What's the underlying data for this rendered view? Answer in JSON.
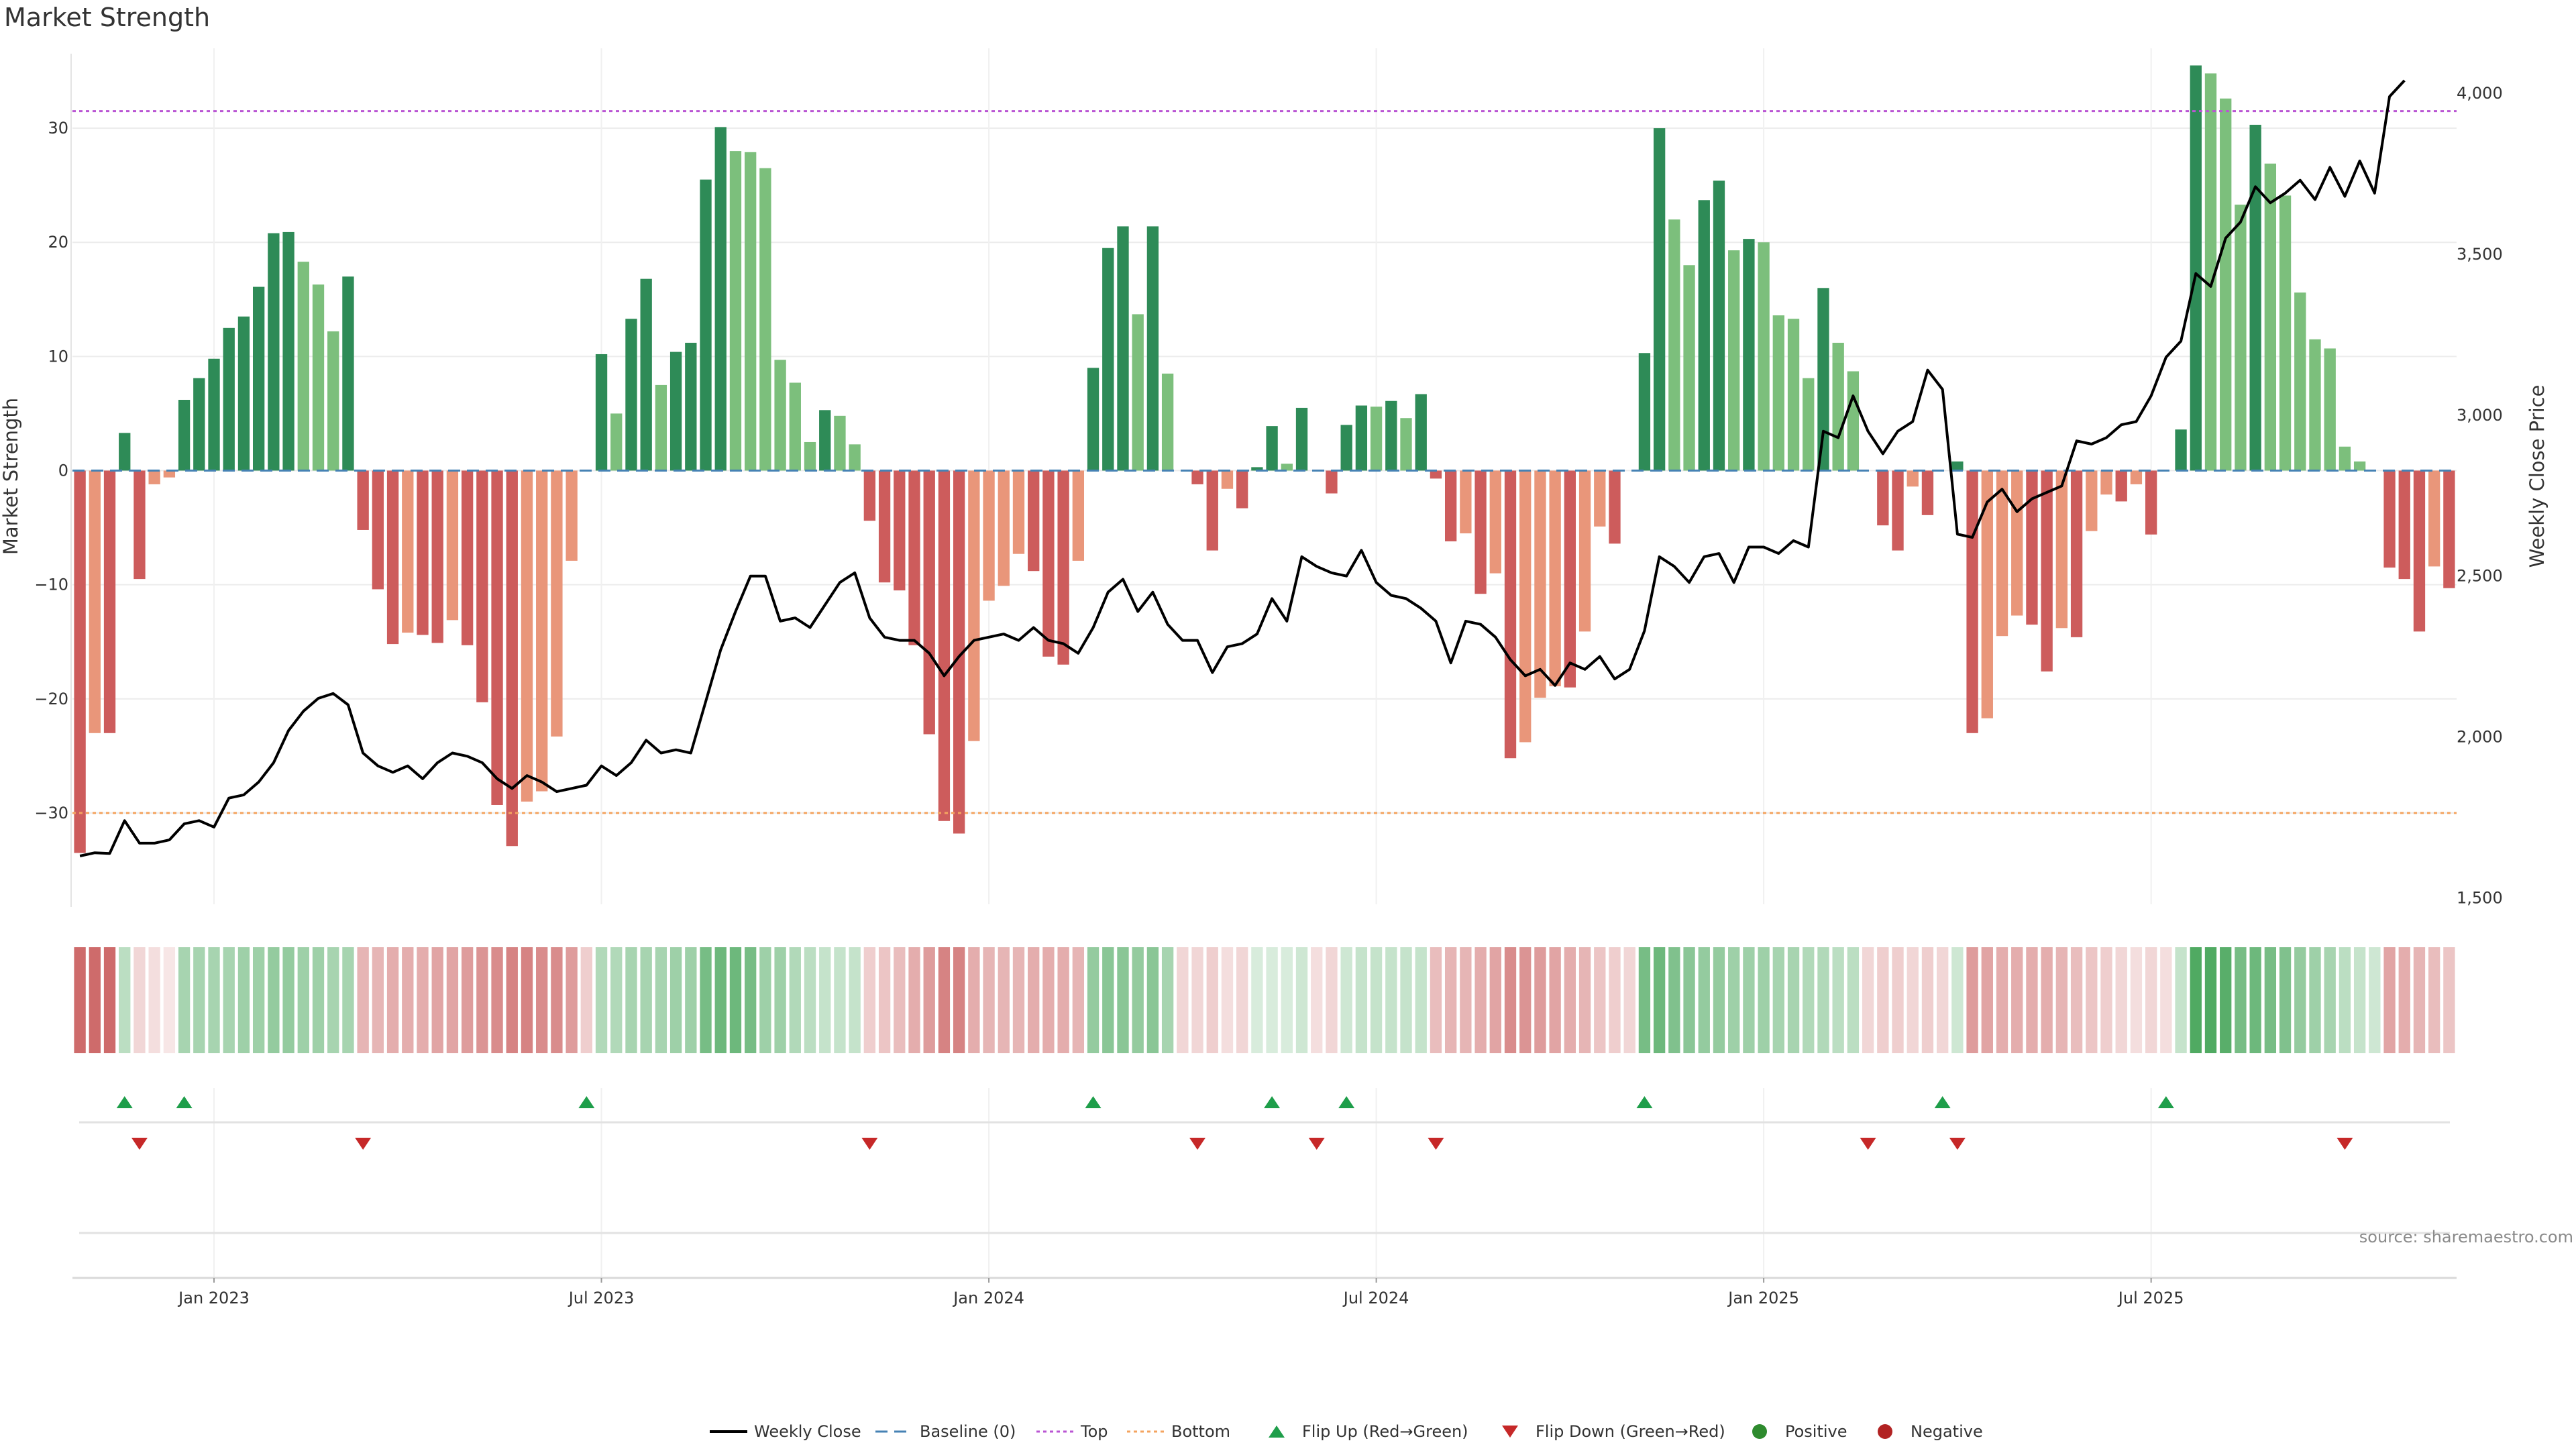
{
  "title": "Market Strength",
  "source": "source: sharemaestro.com",
  "chart_data": {
    "type": "bar",
    "title": "Market Strength",
    "ylabel": "Market Strength",
    "y2label": "Weekly Close Price",
    "ylim": [
      -38,
      37
    ],
    "y2lim": [
      1480,
      4140
    ],
    "yticks": [
      -30,
      -20,
      -10,
      0,
      10,
      20,
      30
    ],
    "y2ticks": [
      1500,
      2000,
      2500,
      3000,
      3500,
      4000
    ],
    "y2tick_labels": [
      "1,500",
      "2,000",
      "2,500",
      "3,000",
      "3,500",
      "4,000"
    ],
    "x_axis_ticks": [
      {
        "label": "Jan 2023",
        "week": 9
      },
      {
        "label": "Jul 2023",
        "week": 35
      },
      {
        "label": "Jan 2024",
        "week": 61
      },
      {
        "label": "Jul 2024",
        "week": 87
      },
      {
        "label": "Jan 2025",
        "week": 113
      },
      {
        "label": "Jul 2025",
        "week": 139
      }
    ],
    "top_level": 31.5,
    "bottom_level": -30,
    "baseline": 0,
    "strength": [
      -33.5,
      -23,
      -23,
      3.3,
      -9.5,
      -1.2,
      -0.6,
      6.2,
      8.1,
      9.8,
      12.5,
      13.5,
      16.1,
      20.8,
      20.9,
      18.3,
      16.3,
      12.2,
      17,
      -5.2,
      -10.4,
      -15.2,
      -14.2,
      -14.4,
      -15.1,
      -13.1,
      -15.3,
      -20.3,
      -29.3,
      -32.9,
      -29,
      -28.1,
      -23.3,
      -7.9,
      0,
      10.2,
      5,
      13.3,
      16.8,
      7.5,
      10.4,
      11.2,
      25.5,
      30.1,
      28,
      27.9,
      26.5,
      9.7,
      7.7,
      2.5,
      5.3,
      4.8,
      2.3,
      -4.4,
      -9.8,
      -10.5,
      -15.3,
      -23.1,
      -30.7,
      -31.8,
      -23.7,
      -11.4,
      -10.1,
      -7.3,
      -8.8,
      -16.3,
      -17,
      -7.9,
      9,
      19.5,
      21.4,
      13.7,
      21.4,
      8.5,
      0,
      -1.2,
      -7,
      -1.6,
      -3.3,
      0.3,
      3.9,
      0.6,
      5.5,
      0,
      -2,
      4,
      5.7,
      5.6,
      6.1,
      4.6,
      6.7,
      -0.7,
      -6.2,
      -5.5,
      -10.8,
      -9,
      -25.2,
      -23.8,
      -19.9,
      -18.9,
      -19,
      -14.1,
      -4.9,
      -6.4,
      0,
      10.3,
      30,
      22,
      18,
      23.7,
      25.4,
      19.3,
      20.3,
      20,
      13.6,
      13.3,
      8.1,
      16,
      11.2,
      8.7,
      0,
      -4.8,
      -7,
      -1.4,
      -3.9,
      0,
      0.8,
      -23,
      -21.7,
      -14.5,
      -12.7,
      -13.5,
      -17.6,
      -13.8,
      -14.6,
      -5.3,
      -2.1,
      -2.7,
      -1.2,
      -5.6,
      0,
      3.6,
      35.5,
      34.8,
      32.6,
      23.3,
      30.3,
      26.9,
      24.1,
      15.6,
      11.5,
      10.7,
      2.1,
      0.8,
      0,
      -8.5,
      -9.5,
      -14.1,
      -8.4,
      -10.3
    ],
    "weekly_close": [
      1630,
      1640,
      1638,
      1740,
      1670,
      1670,
      1680,
      1730,
      1740,
      1720,
      1810,
      1820,
      1860,
      1920,
      2020,
      2080,
      2120,
      2135,
      2100,
      1950,
      1910,
      1890,
      1910,
      1870,
      1920,
      1950,
      1940,
      1920,
      1870,
      1840,
      1880,
      1860,
      1830,
      1840,
      1850,
      1910,
      1880,
      1920,
      1990,
      1950,
      1960,
      1950,
      2110,
      2270,
      2390,
      2500,
      2500,
      2360,
      2370,
      2340,
      2410,
      2480,
      2510,
      2370,
      2310,
      2300,
      2300,
      2260,
      2190,
      2250,
      2300,
      2310,
      2320,
      2300,
      2340,
      2300,
      2290,
      2260,
      2340,
      2450,
      2490,
      2390,
      2450,
      2350,
      2300,
      2300,
      2200,
      2280,
      2290,
      2320,
      2430,
      2360,
      2560,
      2530,
      2510,
      2500,
      2580,
      2480,
      2440,
      2430,
      2400,
      2360,
      2230,
      2360,
      2350,
      2310,
      2240,
      2190,
      2210,
      2160,
      2230,
      2210,
      2250,
      2180,
      2210,
      2330,
      2560,
      2530,
      2480,
      2560,
      2570,
      2480,
      2590,
      2590,
      2570,
      2610,
      2590,
      2950,
      2930,
      3060,
      2950,
      2880,
      2950,
      2980,
      3140,
      3080,
      2630,
      2620,
      2730,
      2770,
      2700,
      2740,
      2760,
      2780,
      2920,
      2910,
      2930,
      2970,
      2980,
      3060,
      3180,
      3230,
      3440,
      3400,
      3550,
      3600,
      3710,
      3660,
      3690,
      3730,
      3670,
      3770,
      3680,
      3790,
      3690,
      3990,
      4040
    ],
    "heat_strip": [
      -0.9,
      -0.9,
      -0.9,
      0.35,
      -0.25,
      -0.2,
      -0.15,
      0.45,
      0.45,
      0.45,
      0.45,
      0.5,
      0.5,
      0.55,
      0.55,
      0.5,
      0.5,
      0.45,
      0.45,
      -0.45,
      -0.45,
      -0.5,
      -0.5,
      -0.5,
      -0.55,
      -0.55,
      -0.6,
      -0.65,
      -0.7,
      -0.75,
      -0.75,
      -0.7,
      -0.7,
      -0.6,
      -0.3,
      0.4,
      0.4,
      0.45,
      0.45,
      0.45,
      0.5,
      0.5,
      0.7,
      0.75,
      0.75,
      0.7,
      0.5,
      0.5,
      0.4,
      0.35,
      0.3,
      0.3,
      0.3,
      -0.3,
      -0.35,
      -0.4,
      -0.5,
      -0.6,
      -0.75,
      -0.75,
      -0.5,
      -0.45,
      -0.45,
      -0.45,
      -0.5,
      -0.5,
      -0.5,
      -0.45,
      0.55,
      0.6,
      0.6,
      0.55,
      0.6,
      0.45,
      -0.25,
      -0.25,
      -0.3,
      -0.2,
      -0.25,
      0.2,
      0.2,
      0.2,
      0.25,
      -0.2,
      -0.25,
      0.25,
      0.3,
      0.3,
      0.3,
      0.3,
      0.3,
      -0.4,
      -0.45,
      -0.45,
      -0.5,
      -0.55,
      -0.7,
      -0.65,
      -0.6,
      -0.55,
      -0.5,
      -0.45,
      -0.35,
      -0.3,
      -0.25,
      0.7,
      0.75,
      0.65,
      0.6,
      0.55,
      0.55,
      0.5,
      0.5,
      0.5,
      0.45,
      0.45,
      0.4,
      0.4,
      0.35,
      0.35,
      -0.25,
      -0.3,
      -0.3,
      -0.25,
      -0.3,
      -0.25,
      0.25,
      -0.6,
      -0.55,
      -0.5,
      -0.5,
      -0.5,
      -0.5,
      -0.45,
      -0.4,
      -0.35,
      -0.3,
      -0.25,
      -0.2,
      -0.25,
      -0.2,
      0.3,
      0.9,
      0.9,
      0.85,
      0.7,
      0.75,
      0.7,
      0.65,
      0.55,
      0.5,
      0.45,
      0.35,
      0.3,
      0.25,
      -0.55,
      -0.5,
      -0.45,
      -0.4,
      -0.35
    ],
    "flip_up_weeks": [
      3,
      7,
      34,
      68,
      80,
      85,
      105,
      125,
      140
    ],
    "flip_down_weeks": [
      4,
      19,
      53,
      75,
      83,
      91,
      120,
      126,
      152
    ],
    "legend": [
      "Weekly Close",
      "Baseline (0)",
      "Top",
      "Bottom",
      "Flip Up (Red→Green)",
      "Flip Down (Green→Red)",
      "Positive",
      "Negative"
    ],
    "legend_placement": "bottom-center",
    "grid": true,
    "colors": {
      "positive_dark": "#2e8b57",
      "positive_light": "#7cbf7c",
      "negative_dark": "#cd5c5c",
      "negative_light": "#e9967a",
      "line": "#000000",
      "top": "#ba55d3",
      "bottom": "#f4a460",
      "baseline": "#4682b4",
      "flip_up": "#1e9e4a",
      "flip_down": "#c62828",
      "positive_dot": "#2e8b2e",
      "negative_dot": "#b22222"
    }
  }
}
